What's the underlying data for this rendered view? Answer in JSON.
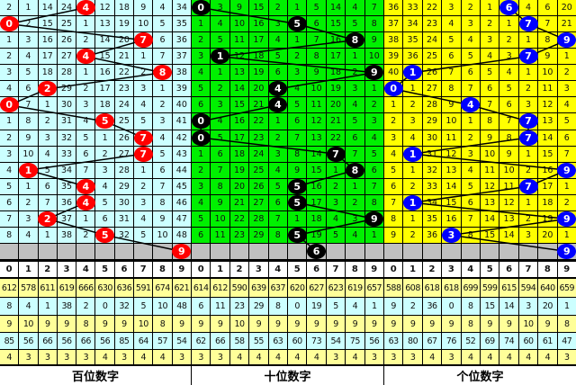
{
  "colors": {
    "ball_hundreds": "#ff0000",
    "ball_tens": "#000000",
    "ball_units": "#0000ff",
    "bg_hundreds": "#ccffff",
    "bg_tens": "#00f000",
    "bg_units": "#ffff00",
    "stat_yellow": "#ffff99",
    "stat_cyan": "#ccffff",
    "forecast_row": "#c0c0c0"
  },
  "panels": [
    {
      "title": "百位数字",
      "ball_color": "#ff0000",
      "rows": [
        [
          2,
          1,
          14,
          24,
          4,
          12,
          18,
          9,
          4,
          34
        ],
        [
          0,
          2,
          15,
          25,
          1,
          13,
          19,
          10,
          5,
          35
        ],
        [
          1,
          3,
          16,
          26,
          2,
          14,
          20,
          7,
          6,
          36
        ],
        [
          2,
          4,
          17,
          27,
          4,
          15,
          21,
          1,
          7,
          37
        ],
        [
          3,
          5,
          18,
          28,
          1,
          16,
          22,
          2,
          8,
          38
        ],
        [
          4,
          6,
          2,
          29,
          2,
          17,
          23,
          3,
          1,
          39
        ],
        [
          0,
          7,
          1,
          30,
          3,
          18,
          24,
          4,
          2,
          40
        ],
        [
          1,
          8,
          2,
          31,
          4,
          5,
          25,
          5,
          3,
          41
        ],
        [
          2,
          9,
          3,
          32,
          5,
          1,
          26,
          7,
          4,
          42
        ],
        [
          3,
          10,
          4,
          33,
          6,
          2,
          27,
          7,
          5,
          43
        ],
        [
          4,
          1,
          5,
          34,
          7,
          3,
          28,
          1,
          6,
          44
        ],
        [
          5,
          1,
          6,
          35,
          4,
          4,
          29,
          2,
          7,
          45
        ],
        [
          6,
          2,
          7,
          36,
          4,
          5,
          30,
          3,
          8,
          46
        ],
        [
          7,
          3,
          2,
          37,
          1,
          6,
          31,
          4,
          9,
          47
        ],
        [
          8,
          4,
          1,
          38,
          2,
          5,
          32,
          5,
          10,
          48
        ]
      ],
      "hits": [
        4,
        0,
        7,
        4,
        8,
        2,
        0,
        5,
        7,
        7,
        1,
        4,
        4,
        2,
        5
      ],
      "forecast": 9,
      "header": [
        "0",
        "1",
        "2",
        "3",
        "4",
        "5",
        "6",
        "7",
        "8",
        "9"
      ],
      "stats": [
        [
          612,
          578,
          611,
          619,
          666,
          630,
          636,
          591,
          674,
          621
        ],
        [
          8,
          4,
          1,
          38,
          2,
          0,
          32,
          5,
          10,
          48
        ],
        [
          9,
          10,
          9,
          9,
          8,
          9,
          9,
          10,
          8,
          9
        ],
        [
          85,
          56,
          66,
          56,
          66,
          56,
          85,
          64,
          57,
          54
        ],
        [
          4,
          3,
          3,
          3,
          3,
          4,
          3,
          4,
          4,
          3
        ]
      ]
    },
    {
      "title": "十位数字",
      "ball_color": "#000000",
      "rows": [
        [
          0,
          3,
          9,
          15,
          2,
          1,
          5,
          14,
          4,
          7
        ],
        [
          1,
          4,
          10,
          16,
          3,
          5,
          6,
          15,
          5,
          8
        ],
        [
          2,
          5,
          11,
          17,
          4,
          1,
          7,
          16,
          8,
          9
        ],
        [
          3,
          1,
          12,
          18,
          5,
          2,
          8,
          17,
          1,
          10
        ],
        [
          4,
          1,
          13,
          19,
          6,
          3,
          9,
          18,
          2,
          9
        ],
        [
          5,
          2,
          14,
          20,
          4,
          4,
          10,
          19,
          3,
          1
        ],
        [
          6,
          3,
          15,
          21,
          4,
          5,
          11,
          20,
          4,
          2
        ],
        [
          0,
          4,
          16,
          22,
          1,
          6,
          12,
          21,
          5,
          3
        ],
        [
          0,
          5,
          17,
          23,
          2,
          7,
          13,
          22,
          6,
          4
        ],
        [
          1,
          6,
          18,
          24,
          3,
          8,
          14,
          7,
          7,
          5
        ],
        [
          2,
          7,
          19,
          25,
          4,
          9,
          15,
          1,
          8,
          6
        ],
        [
          3,
          8,
          20,
          26,
          5,
          5,
          16,
          2,
          1,
          7
        ],
        [
          4,
          9,
          21,
          27,
          6,
          5,
          17,
          3,
          2,
          8
        ],
        [
          5,
          10,
          22,
          28,
          7,
          1,
          18,
          4,
          3,
          9
        ],
        [
          6,
          11,
          23,
          29,
          8,
          5,
          19,
          5,
          4,
          1
        ]
      ],
      "hits": [
        0,
        5,
        8,
        1,
        9,
        4,
        4,
        0,
        0,
        7,
        8,
        5,
        5,
        9,
        5
      ],
      "forecast": 6,
      "header": [
        "0",
        "1",
        "2",
        "3",
        "4",
        "5",
        "6",
        "7",
        "8",
        "9"
      ],
      "stats": [
        [
          614,
          612,
          590,
          639,
          637,
          620,
          627,
          623,
          619,
          657
        ],
        [
          6,
          11,
          23,
          29,
          8,
          0,
          19,
          5,
          4,
          1
        ],
        [
          9,
          9,
          10,
          9,
          9,
          9,
          9,
          9,
          9,
          9
        ],
        [
          62,
          66,
          58,
          55,
          63,
          60,
          73,
          54,
          75,
          56
        ],
        [
          3,
          3,
          4,
          4,
          4,
          4,
          4,
          3,
          4,
          3
        ]
      ]
    },
    {
      "title": "个位数字",
      "ball_color": "#0000ff",
      "rows": [
        [
          36,
          33,
          22,
          3,
          2,
          1,
          6,
          4,
          6,
          20
        ],
        [
          37,
          34,
          23,
          4,
          3,
          2,
          1,
          7,
          7,
          21
        ],
        [
          38,
          35,
          24,
          5,
          4,
          3,
          2,
          1,
          8,
          9
        ],
        [
          39,
          36,
          25,
          6,
          5,
          4,
          3,
          7,
          9,
          1
        ],
        [
          40,
          1,
          26,
          7,
          6,
          5,
          4,
          1,
          10,
          2
        ],
        [
          0,
          1,
          27,
          8,
          7,
          6,
          5,
          2,
          11,
          3
        ],
        [
          1,
          2,
          28,
          9,
          4,
          7,
          6,
          3,
          12,
          4
        ],
        [
          2,
          3,
          29,
          10,
          1,
          8,
          7,
          7,
          13,
          5
        ],
        [
          3,
          4,
          30,
          11,
          2,
          9,
          8,
          7,
          14,
          6
        ],
        [
          4,
          1,
          31,
          12,
          3,
          10,
          9,
          1,
          15,
          7
        ],
        [
          5,
          1,
          32,
          13,
          4,
          11,
          10,
          2,
          16,
          9
        ],
        [
          6,
          2,
          33,
          14,
          5,
          12,
          11,
          7,
          17,
          1
        ],
        [
          7,
          1,
          34,
          15,
          6,
          13,
          12,
          1,
          18,
          2
        ],
        [
          8,
          1,
          35,
          16,
          7,
          14,
          13,
          2,
          19,
          9
        ],
        [
          9,
          2,
          36,
          3,
          8,
          15,
          14,
          3,
          20,
          1
        ]
      ],
      "hits": [
        6,
        7,
        9,
        7,
        1,
        0,
        4,
        7,
        7,
        1,
        9,
        7,
        1,
        9,
        3
      ],
      "forecast": 9,
      "header": [
        "0",
        "1",
        "2",
        "3",
        "4",
        "5",
        "6",
        "7",
        "8",
        "9"
      ],
      "stats": [
        [
          588,
          608,
          618,
          618,
          699,
          599,
          615,
          594,
          640,
          659
        ],
        [
          9,
          2,
          36,
          0,
          8,
          15,
          14,
          3,
          20,
          1
        ],
        [
          9,
          9,
          9,
          9,
          8,
          9,
          9,
          10,
          9,
          8
        ],
        [
          63,
          80,
          67,
          76,
          52,
          69,
          74,
          60,
          61,
          47
        ],
        [
          3,
          3,
          4,
          3,
          4,
          4,
          4,
          4,
          4,
          3
        ]
      ]
    }
  ]
}
